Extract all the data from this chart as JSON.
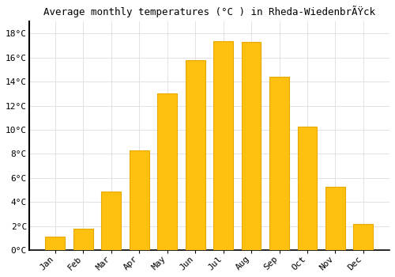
{
  "title": "Average monthly temperatures (°C ) in Rheda-WiedenbrÃŸÅ¼k",
  "title_display": "Average monthly temperatures (°C ) in Rheda-WiedenbrÃ‹ck",
  "months": [
    "Jan",
    "Feb",
    "Mar",
    "Apr",
    "May",
    "Jun",
    "Jul",
    "Aug",
    "Sep",
    "Oct",
    "Nov",
    "Dec"
  ],
  "temperatures": [
    1.1,
    1.8,
    4.9,
    8.3,
    13.0,
    15.8,
    17.4,
    17.3,
    14.4,
    10.3,
    5.3,
    2.2
  ],
  "bar_color": "#FFC010",
  "bar_edge_color": "#E8A800",
  "background_color": "#ffffff",
  "grid_color": "#dddddd",
  "ylim": [
    0,
    19
  ],
  "yticks": [
    0,
    2,
    4,
    6,
    8,
    10,
    12,
    14,
    16,
    18
  ],
  "title_fontsize": 9,
  "tick_fontsize": 8,
  "figsize": [
    5.0,
    3.5
  ],
  "dpi": 100
}
